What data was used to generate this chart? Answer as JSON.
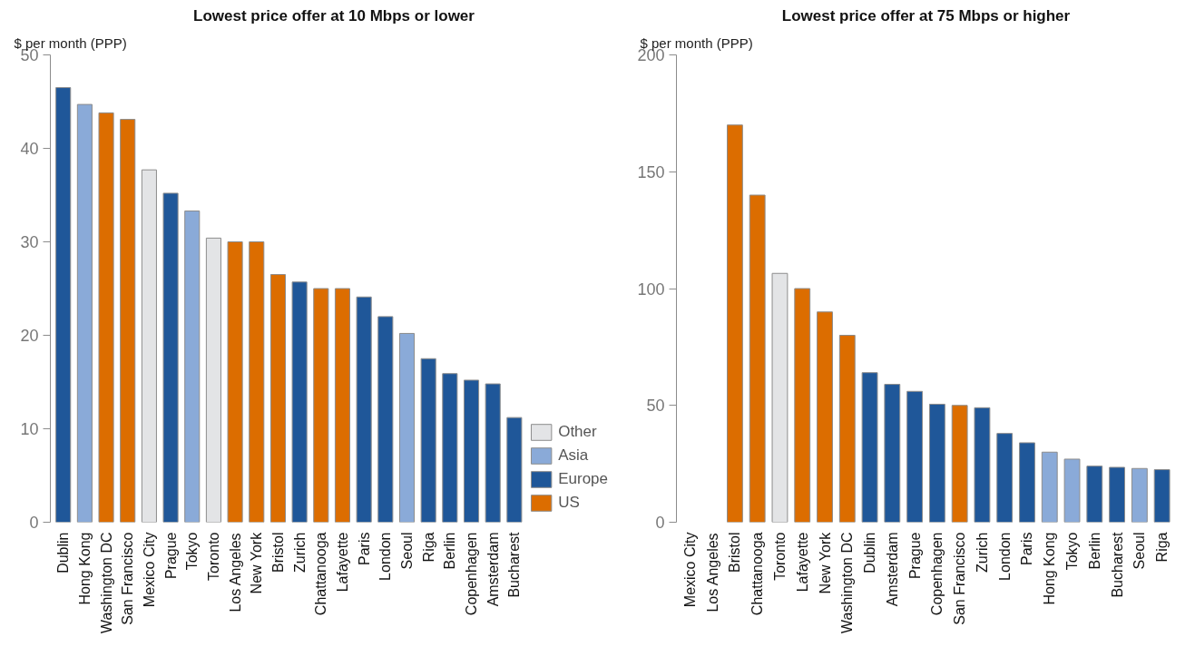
{
  "chart_data": [
    {
      "type": "bar",
      "title": "Lowest price offer at 10 Mbps or lower",
      "ylabel": "$ per month (PPP)",
      "categories": [
        "Dublin",
        "Hong Kong",
        "Washington DC",
        "San Francisco",
        "Mexico City",
        "Prague",
        "Tokyo",
        "Toronto",
        "Los Angeles",
        "New York",
        "Bristol",
        "Zurich",
        "Chattanooga",
        "Lafayette",
        "Paris",
        "London",
        "Seoul",
        "Riga",
        "Berlin",
        "Copenhagen",
        "Amsterdam",
        "Bucharest"
      ],
      "series": [
        {
          "name": "Other",
          "color": "#e3e4e6",
          "values": [
            null,
            null,
            null,
            null,
            37.7,
            null,
            null,
            30.4,
            null,
            null,
            null,
            null,
            null,
            null,
            null,
            null,
            null,
            null,
            null,
            null,
            null,
            null
          ]
        },
        {
          "name": "Asia",
          "color": "#8aaad8",
          "values": [
            null,
            44.7,
            null,
            null,
            null,
            null,
            33.3,
            null,
            null,
            null,
            null,
            null,
            null,
            null,
            null,
            null,
            20.2,
            null,
            null,
            null,
            null,
            null
          ]
        },
        {
          "name": "Europe",
          "color": "#1f5799",
          "values": [
            46.5,
            null,
            null,
            null,
            null,
            35.2,
            null,
            null,
            null,
            null,
            null,
            25.7,
            null,
            null,
            24.1,
            22,
            null,
            17.5,
            15.9,
            15.2,
            14.8,
            11.2
          ]
        },
        {
          "name": "US",
          "color": "#dc6d00",
          "values": [
            null,
            null,
            43.8,
            43.1,
            null,
            null,
            null,
            null,
            30,
            30,
            26.5,
            null,
            25,
            25,
            null,
            null,
            null,
            null,
            null,
            null,
            null,
            null
          ]
        }
      ],
      "ylim": [
        0,
        50
      ],
      "yticks": [
        0,
        10,
        20,
        30,
        40,
        50
      ],
      "grid": false,
      "legend": "bottom right"
    },
    {
      "type": "bar",
      "title": "Lowest price offer at 75 Mbps or higher",
      "ylabel": "$ per month (PPP)",
      "categories": [
        "Mexico City",
        "Los Angeles",
        "Bristol",
        "Chattanooga",
        "Toronto",
        "Lafayette",
        "New York",
        "Washington DC",
        "Dublin",
        "Amsterdam",
        "Prague",
        "Copenhagen",
        "San Francisco",
        "Zurich",
        "London",
        "Paris",
        "Hong Kong",
        "Tokyo",
        "Berlin",
        "Bucharest",
        "Seoul",
        "Riga"
      ],
      "series": [
        {
          "color": "#e3e4e6",
          "values": [
            null,
            null,
            null,
            null,
            106.5,
            null,
            null,
            null,
            null,
            null,
            null,
            null,
            null,
            null,
            null,
            null,
            null,
            null,
            null,
            null,
            null,
            null
          ]
        },
        {
          "color": "#8aaad8",
          "values": [
            null,
            null,
            null,
            null,
            null,
            null,
            null,
            null,
            null,
            null,
            null,
            null,
            null,
            null,
            null,
            null,
            30,
            27,
            null,
            null,
            23,
            null
          ]
        },
        {
          "color": "#1f5799",
          "values": [
            null,
            null,
            null,
            null,
            null,
            null,
            null,
            null,
            64,
            59,
            56,
            50.5,
            null,
            49,
            38,
            34,
            null,
            null,
            24,
            23.5,
            null,
            22.5
          ]
        },
        {
          "color": "#dc6d00",
          "values": [
            null,
            null,
            170,
            140,
            null,
            100,
            90,
            80,
            null,
            null,
            null,
            null,
            50,
            null,
            null,
            null,
            null,
            null,
            null,
            null,
            null,
            null
          ]
        }
      ],
      "ylim": [
        0,
        200
      ],
      "yticks": [
        0,
        50,
        100,
        150,
        200
      ],
      "grid": false
    }
  ]
}
